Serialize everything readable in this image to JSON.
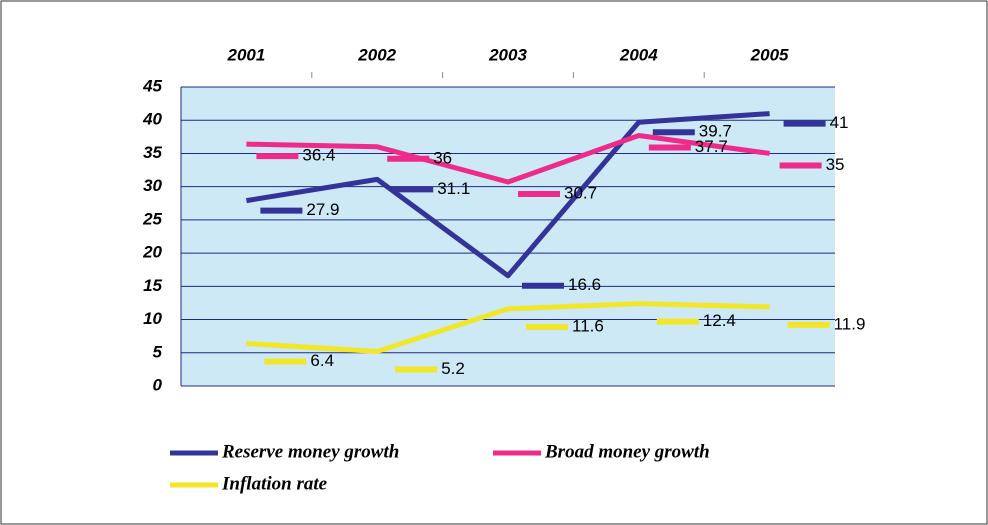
{
  "chart_data": {
    "type": "line",
    "categories": [
      "2001",
      "2002",
      "2003",
      "2004",
      "2005"
    ],
    "series": [
      {
        "name": "Reserve money growth",
        "color": "#333399",
        "values": [
          27.9,
          31.1,
          16.6,
          39.7,
          41
        ]
      },
      {
        "name": "Broad money growth",
        "color": "#ee2b8b",
        "values": [
          36.4,
          36,
          30.7,
          37.7,
          35
        ]
      },
      {
        "name": "Inflation rate",
        "color": "#f2e629",
        "values": [
          6.4,
          5.2,
          11.6,
          12.4,
          11.9
        ]
      }
    ],
    "ylim": [
      0,
      45
    ],
    "yticks": [
      0,
      5,
      10,
      15,
      20,
      25,
      30,
      35,
      40,
      45
    ],
    "grid": true
  }
}
